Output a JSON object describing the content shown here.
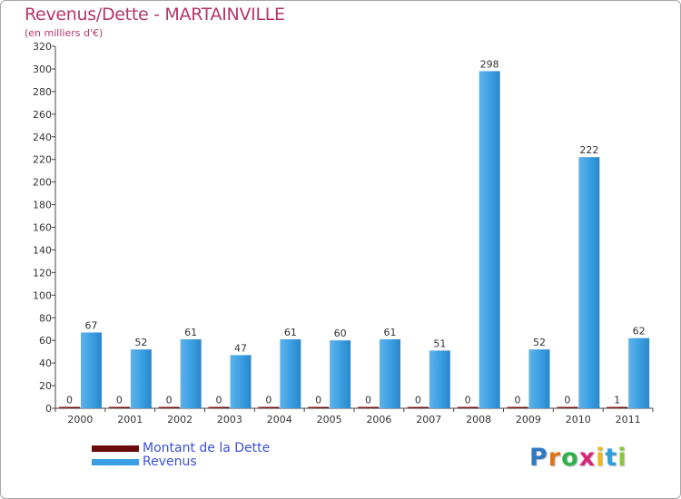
{
  "header": {
    "title": "Revenus/Dette - MARTAINVILLE",
    "subtitle": "(en milliers d'€)"
  },
  "legend": {
    "items": [
      {
        "label": "Montant de la Dette",
        "color": "#6b0a0a"
      },
      {
        "label": "Revenus",
        "color": "#3a9ee2"
      }
    ]
  },
  "logo": {
    "letters": [
      {
        "ch": "P",
        "color": "#2f78c4"
      },
      {
        "ch": "r",
        "color": "#e0741b"
      },
      {
        "ch": "o",
        "color": "#2fb14a"
      },
      {
        "ch": "x",
        "color": "#d9257a"
      },
      {
        "ch": "i",
        "color": "#e8b820"
      },
      {
        "ch": "t",
        "color": "#2f9fd9"
      },
      {
        "ch": "i",
        "color": "#8bc53f"
      }
    ]
  },
  "chart_data": {
    "type": "bar",
    "categories": [
      "2000",
      "2001",
      "2002",
      "2003",
      "2004",
      "2005",
      "2006",
      "2007",
      "2008",
      "2009",
      "2010",
      "2011"
    ],
    "series": [
      {
        "name": "Montant de la Dette",
        "color": "#6b0a0a",
        "values": [
          0,
          0,
          0,
          0,
          0,
          0,
          0,
          0,
          0,
          0,
          0,
          1
        ]
      },
      {
        "name": "Revenus",
        "color": "#3a9ee2",
        "values": [
          67,
          52,
          61,
          47,
          61,
          60,
          61,
          51,
          298,
          52,
          222,
          62
        ]
      }
    ],
    "title": "Revenus/Dette - MARTAINVILLE",
    "subtitle": "(en milliers d'€)",
    "ylim": [
      0,
      320
    ],
    "yticks": [
      0,
      20,
      40,
      60,
      80,
      100,
      120,
      140,
      160,
      180,
      200,
      220,
      240,
      260,
      280,
      300,
      320
    ],
    "grid": false,
    "legend_position": "bottom-left"
  }
}
